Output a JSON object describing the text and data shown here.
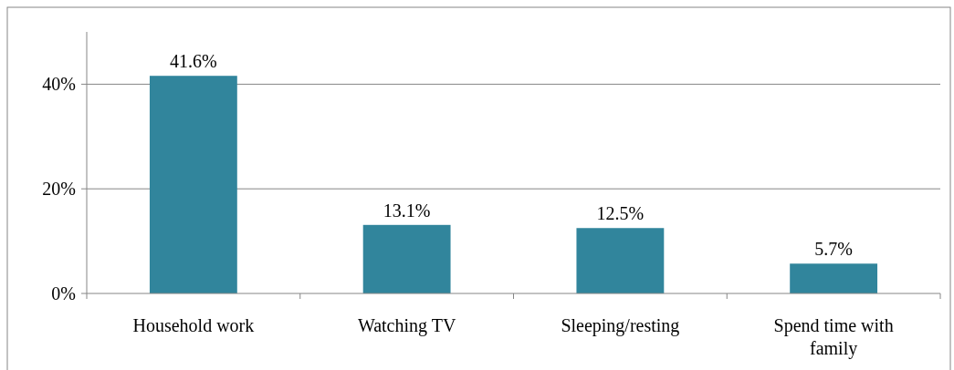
{
  "chart_data": {
    "type": "bar",
    "categories": [
      "Household work",
      "Watching TV",
      "Sleeping/resting",
      "Spend time with family"
    ],
    "values": [
      41.6,
      13.1,
      12.5,
      5.7
    ],
    "value_labels": [
      "41.6%",
      "13.1%",
      "12.5%",
      "5.7%"
    ],
    "color": "#31859c",
    "ylim": [
      0,
      50
    ],
    "yticks": [
      {
        "value": 0,
        "label": "0%"
      },
      {
        "value": 20,
        "label": "20%"
      },
      {
        "value": 40,
        "label": "40%"
      }
    ],
    "grid": "y"
  }
}
